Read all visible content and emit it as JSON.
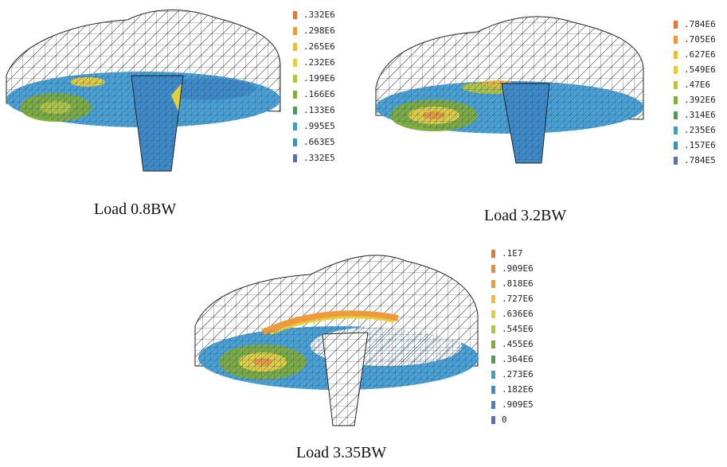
{
  "figures": [
    {
      "caption": "Load 0.8BW",
      "legend": [
        {
          "label": ".332E6",
          "color": "#e8743a"
        },
        {
          "label": ".298E6",
          "color": "#ef9a3a"
        },
        {
          "label": ".265E6",
          "color": "#f2b83a"
        },
        {
          "label": ".232E6",
          "color": "#e4cf3a"
        },
        {
          "label": ".199E6",
          "color": "#b5c63a"
        },
        {
          "label": ".166E6",
          "color": "#7fae3c"
        },
        {
          "label": ".133E6",
          "color": "#4f9a5a"
        },
        {
          "label": ".995E5",
          "color": "#3f9fb8"
        },
        {
          "label": ".663E5",
          "color": "#3e8ccb"
        },
        {
          "label": ".332E5",
          "color": "#5a6fb8"
        }
      ]
    },
    {
      "caption": "Load 3.2BW",
      "legend": [
        {
          "label": ".784E6",
          "color": "#e8743a"
        },
        {
          "label": ".705E6",
          "color": "#ef9a3a"
        },
        {
          "label": ".627E6",
          "color": "#f2b83a"
        },
        {
          "label": ".549E6",
          "color": "#e4cf3a"
        },
        {
          "label": ".47E6",
          "color": "#b5c63a"
        },
        {
          "label": ".392E6",
          "color": "#7fae3c"
        },
        {
          "label": ".314E6",
          "color": "#4f9a5a"
        },
        {
          "label": ".235E6",
          "color": "#3f9fb8"
        },
        {
          "label": ".157E6",
          "color": "#3e8ccb"
        },
        {
          "label": ".784E5",
          "color": "#5a6fb8"
        }
      ]
    },
    {
      "caption": "Load 3.35BW",
      "legend": [
        {
          "label": ".1E7",
          "color": "#e8743a"
        },
        {
          "label": ".909E6",
          "color": "#ec8a3a"
        },
        {
          "label": ".818E6",
          "color": "#ef9a3a"
        },
        {
          "label": ".727E6",
          "color": "#f2b83a"
        },
        {
          "label": ".636E6",
          "color": "#e4cf3a"
        },
        {
          "label": ".545E6",
          "color": "#b5c63a"
        },
        {
          "label": ".455E6",
          "color": "#7fae3c"
        },
        {
          "label": ".364E6",
          "color": "#4f9a5a"
        },
        {
          "label": ".273E6",
          "color": "#3f9fb8"
        },
        {
          "label": ".182E6",
          "color": "#3e8ccb"
        },
        {
          "label": ".909E5",
          "color": "#4a7fc4"
        },
        {
          "label": "0",
          "color": "#5a6fb8"
        }
      ]
    }
  ]
}
